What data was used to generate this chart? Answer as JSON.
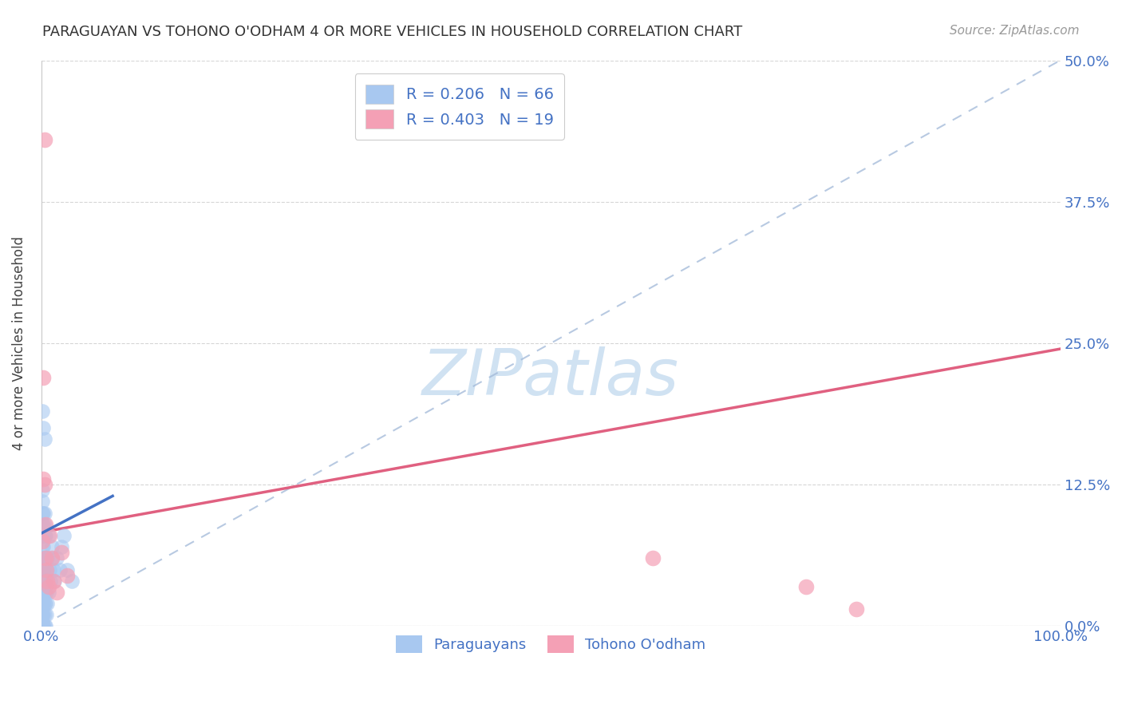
{
  "title": "PARAGUAYAN VS TOHONO O'ODHAM 4 OR MORE VEHICLES IN HOUSEHOLD CORRELATION CHART",
  "source": "Source: ZipAtlas.com",
  "ylabel_label": "4 or more Vehicles in Household",
  "legend_label1": "Paraguayans",
  "legend_label2": "Tohono O'odham",
  "r1": 0.206,
  "n1": 66,
  "r2": 0.403,
  "n2": 19,
  "color_blue": "#a8c8f0",
  "color_pink": "#f4a0b5",
  "color_blue_text": "#4472c4",
  "color_pink_line": "#e06080",
  "color_blue_dashed": "#a0b8d8",
  "color_blue_line": "#4472c4",
  "background": "#ffffff",
  "par_x": [
    0.001,
    0.001,
    0.001,
    0.001,
    0.001,
    0.001,
    0.001,
    0.001,
    0.001,
    0.001,
    0.001,
    0.001,
    0.001,
    0.001,
    0.001,
    0.001,
    0.001,
    0.001,
    0.002,
    0.002,
    0.002,
    0.002,
    0.002,
    0.002,
    0.002,
    0.002,
    0.002,
    0.002,
    0.002,
    0.002,
    0.003,
    0.003,
    0.003,
    0.003,
    0.003,
    0.003,
    0.003,
    0.003,
    0.003,
    0.004,
    0.004,
    0.004,
    0.004,
    0.004,
    0.005,
    0.005,
    0.005,
    0.006,
    0.006,
    0.007,
    0.007,
    0.008,
    0.009,
    0.01,
    0.01,
    0.012,
    0.013,
    0.015,
    0.018,
    0.02,
    0.022,
    0.025,
    0.03,
    0.001,
    0.002,
    0.003
  ],
  "par_y": [
    0.0,
    0.0,
    0.0,
    0.0,
    0.0,
    0.01,
    0.01,
    0.02,
    0.03,
    0.04,
    0.05,
    0.06,
    0.07,
    0.08,
    0.09,
    0.1,
    0.11,
    0.12,
    0.0,
    0.0,
    0.01,
    0.02,
    0.03,
    0.04,
    0.05,
    0.06,
    0.07,
    0.08,
    0.09,
    0.1,
    0.0,
    0.01,
    0.02,
    0.03,
    0.05,
    0.06,
    0.08,
    0.09,
    0.1,
    0.0,
    0.02,
    0.04,
    0.06,
    0.08,
    0.01,
    0.03,
    0.05,
    0.02,
    0.06,
    0.03,
    0.08,
    0.05,
    0.04,
    0.06,
    0.07,
    0.05,
    0.04,
    0.06,
    0.05,
    0.07,
    0.08,
    0.05,
    0.04,
    0.19,
    0.175,
    0.165
  ],
  "toh_x": [
    0.001,
    0.002,
    0.003,
    0.004,
    0.004,
    0.005,
    0.006,
    0.007,
    0.008,
    0.01,
    0.012,
    0.015,
    0.02,
    0.025,
    0.6,
    0.75,
    0.8,
    0.002,
    0.003
  ],
  "toh_y": [
    0.075,
    0.13,
    0.125,
    0.09,
    0.06,
    0.05,
    0.04,
    0.035,
    0.08,
    0.06,
    0.04,
    0.03,
    0.065,
    0.045,
    0.06,
    0.035,
    0.015,
    0.22,
    0.43
  ],
  "xlim": [
    0.0,
    1.0
  ],
  "ylim": [
    0.0,
    0.5
  ],
  "x_ticks": [
    0.0,
    1.0
  ],
  "x_ticklabels": [
    "0.0%",
    "100.0%"
  ],
  "y_ticks": [
    0.0,
    0.125,
    0.25,
    0.375,
    0.5
  ],
  "y_ticklabels": [
    "0.0%",
    "12.5%",
    "25.0%",
    "37.5%",
    "50.0%"
  ],
  "diag_line_x": [
    0.0,
    1.0
  ],
  "diag_line_y": [
    0.0,
    0.5
  ],
  "pink_line_x": [
    0.0,
    1.0
  ],
  "pink_line_y": [
    0.083,
    0.245
  ],
  "blue_line_x": [
    0.0,
    0.07
  ],
  "blue_line_y": [
    0.082,
    0.115
  ]
}
